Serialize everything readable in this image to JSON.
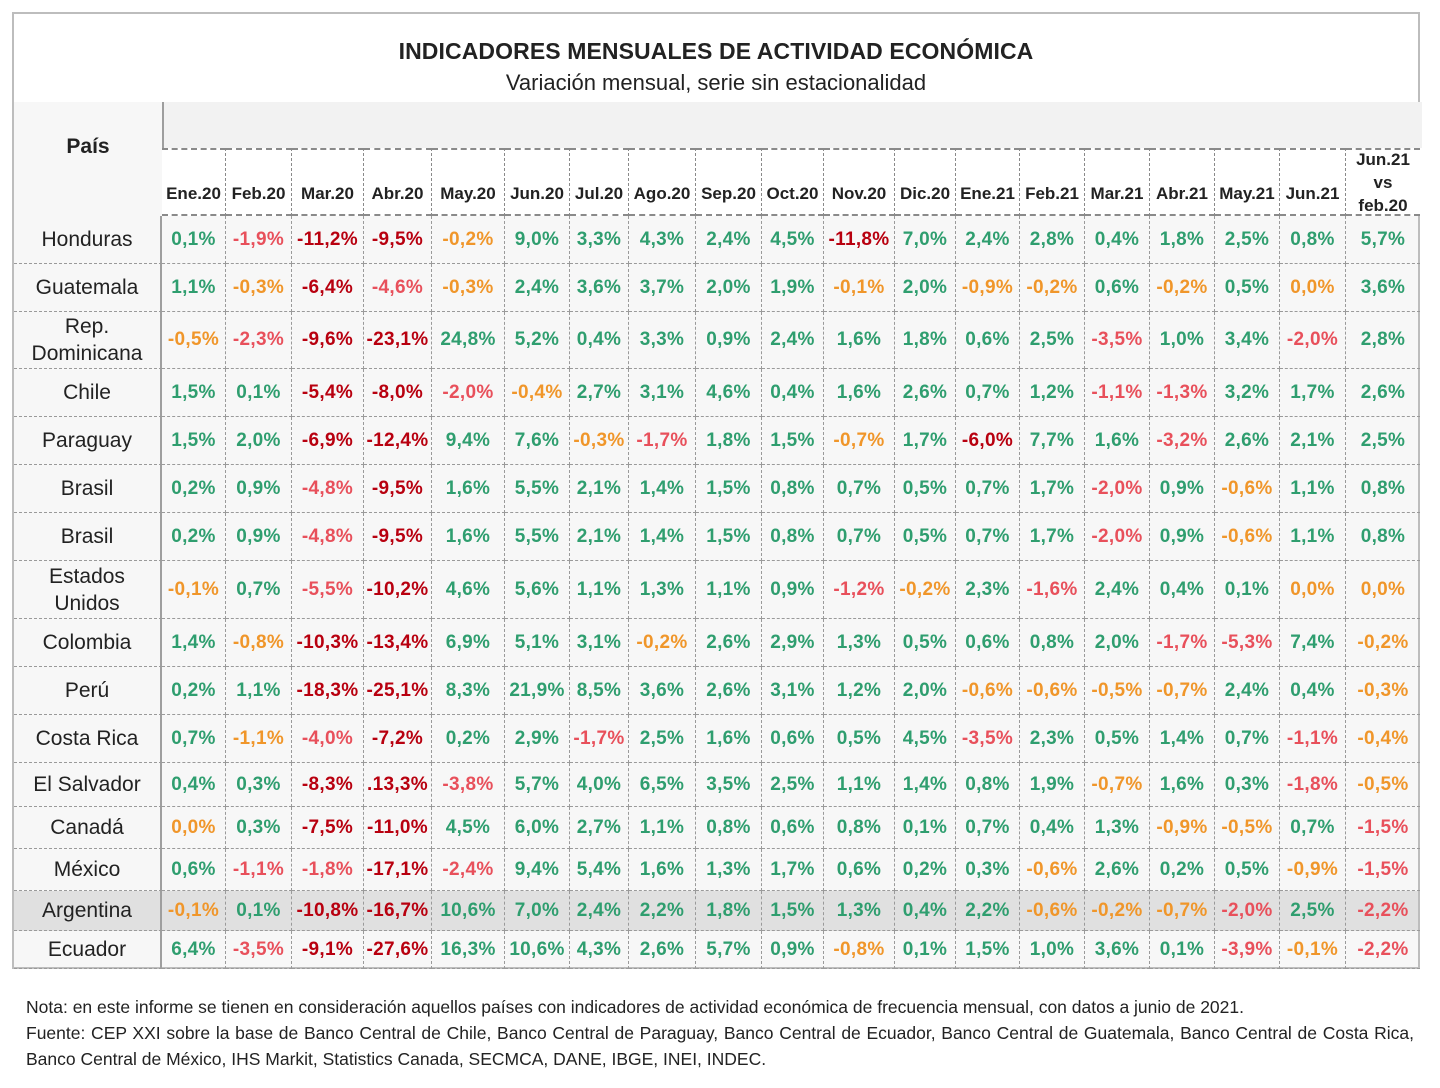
{
  "title": "INDICADORES MENSUALES DE ACTIVIDAD ECONÓMICA",
  "subtitle": "Variación mensual, serie sin estacionalidad",
  "country_header": "País",
  "columns": [
    "Ene.20",
    "Feb.20",
    "Mar.20",
    "Abr.20",
    "May.20",
    "Jun.20",
    "Jul.20",
    "Ago.20",
    "Sep.20",
    "Oct.20",
    "Nov.20",
    "Dic.20",
    "Ene.21",
    "Feb.21",
    "Mar.21",
    "Abr.21",
    "May.21",
    "Jun.21"
  ],
  "last_column": {
    "line1": "Jun.21",
    "line2": "vs",
    "line3": "feb.20"
  },
  "color_legend": {
    "g": "#2f9e6f",
    "o": "#f0962a",
    "r": "#e8505b",
    "d": "#b8000f"
  },
  "rows": [
    {
      "country": "Honduras",
      "values": [
        "0,1%",
        "-1,9%",
        "-11,2%",
        "-9,5%",
        "-0,2%",
        "9,0%",
        "3,3%",
        "4,3%",
        "2,4%",
        "4,5%",
        "-11,8%",
        "7,0%",
        "2,4%",
        "2,8%",
        "0,4%",
        "1,8%",
        "2,5%",
        "0,8%",
        "5,7%"
      ],
      "colors": [
        "g",
        "r",
        "d",
        "d",
        "o",
        "g",
        "g",
        "g",
        "g",
        "g",
        "d",
        "g",
        "g",
        "g",
        "g",
        "g",
        "g",
        "g",
        "g"
      ]
    },
    {
      "country": "Guatemala",
      "values": [
        "1,1%",
        "-0,3%",
        "-6,4%",
        "-4,6%",
        "-0,3%",
        "2,4%",
        "3,6%",
        "3,7%",
        "2,0%",
        "1,9%",
        "-0,1%",
        "2,0%",
        "-0,9%",
        "-0,2%",
        "0,6%",
        "-0,2%",
        "0,5%",
        "0,0%",
        "3,6%"
      ],
      "colors": [
        "g",
        "o",
        "d",
        "r",
        "o",
        "g",
        "g",
        "g",
        "g",
        "g",
        "o",
        "g",
        "o",
        "o",
        "g",
        "o",
        "g",
        "o",
        "g"
      ]
    },
    {
      "country": "Rep. Dominicana",
      "values": [
        "-0,5%",
        "-2,3%",
        "-9,6%",
        "-23,1%",
        "24,8%",
        "5,2%",
        "0,4%",
        "3,3%",
        "0,9%",
        "2,4%",
        "1,6%",
        "1,8%",
        "0,6%",
        "2,5%",
        "-3,5%",
        "1,0%",
        "3,4%",
        "-2,0%",
        "2,8%"
      ],
      "colors": [
        "o",
        "r",
        "d",
        "d",
        "g",
        "g",
        "g",
        "g",
        "g",
        "g",
        "g",
        "g",
        "g",
        "g",
        "r",
        "g",
        "g",
        "r",
        "g"
      ]
    },
    {
      "country": "Chile",
      "values": [
        "1,5%",
        "0,1%",
        "-5,4%",
        "-8,0%",
        "-2,0%",
        "-0,4%",
        "2,7%",
        "3,1%",
        "4,6%",
        "0,4%",
        "1,6%",
        "2,6%",
        "0,7%",
        "1,2%",
        "-1,1%",
        "-1,3%",
        "3,2%",
        "1,7%",
        "2,6%"
      ],
      "colors": [
        "g",
        "g",
        "d",
        "d",
        "r",
        "o",
        "g",
        "g",
        "g",
        "g",
        "g",
        "g",
        "g",
        "g",
        "r",
        "r",
        "g",
        "g",
        "g"
      ]
    },
    {
      "country": "Paraguay",
      "values": [
        "1,5%",
        "2,0%",
        "-6,9%",
        "-12,4%",
        "9,4%",
        "7,6%",
        "-0,3%",
        "-1,7%",
        "1,8%",
        "1,5%",
        "-0,7%",
        "1,7%",
        "-6,0%",
        "7,7%",
        "1,6%",
        "-3,2%",
        "2,6%",
        "2,1%",
        "2,5%"
      ],
      "colors": [
        "g",
        "g",
        "d",
        "d",
        "g",
        "g",
        "o",
        "r",
        "g",
        "g",
        "o",
        "g",
        "d",
        "g",
        "g",
        "r",
        "g",
        "g",
        "g"
      ]
    },
    {
      "country": "Brasil",
      "values": [
        "0,2%",
        "0,9%",
        "-4,8%",
        "-9,5%",
        "1,6%",
        "5,5%",
        "2,1%",
        "1,4%",
        "1,5%",
        "0,8%",
        "0,7%",
        "0,5%",
        "0,7%",
        "1,7%",
        "-2,0%",
        "0,9%",
        "-0,6%",
        "1,1%",
        "0,8%"
      ],
      "colors": [
        "g",
        "g",
        "r",
        "d",
        "g",
        "g",
        "g",
        "g",
        "g",
        "g",
        "g",
        "g",
        "g",
        "g",
        "r",
        "g",
        "o",
        "g",
        "g"
      ]
    },
    {
      "country": "Brasil",
      "values": [
        "0,2%",
        "0,9%",
        "-4,8%",
        "-9,5%",
        "1,6%",
        "5,5%",
        "2,1%",
        "1,4%",
        "1,5%",
        "0,8%",
        "0,7%",
        "0,5%",
        "0,7%",
        "1,7%",
        "-2,0%",
        "0,9%",
        "-0,6%",
        "1,1%",
        "0,8%"
      ],
      "colors": [
        "g",
        "g",
        "r",
        "d",
        "g",
        "g",
        "g",
        "g",
        "g",
        "g",
        "g",
        "g",
        "g",
        "g",
        "r",
        "g",
        "o",
        "g",
        "g"
      ]
    },
    {
      "country": "Estados Unidos",
      "values": [
        "-0,1%",
        "0,7%",
        "-5,5%",
        "-10,2%",
        "4,6%",
        "5,6%",
        "1,1%",
        "1,3%",
        "1,1%",
        "0,9%",
        "-1,2%",
        "-0,2%",
        "2,3%",
        "-1,6%",
        "2,4%",
        "0,4%",
        "0,1%",
        "0,0%",
        "0,0%"
      ],
      "colors": [
        "o",
        "g",
        "r",
        "d",
        "g",
        "g",
        "g",
        "g",
        "g",
        "g",
        "r",
        "o",
        "g",
        "r",
        "g",
        "g",
        "g",
        "o",
        "o"
      ]
    },
    {
      "country": "Colombia",
      "values": [
        "1,4%",
        "-0,8%",
        "-10,3%",
        "-13,4%",
        "6,9%",
        "5,1%",
        "3,1%",
        "-0,2%",
        "2,6%",
        "2,9%",
        "1,3%",
        "0,5%",
        "0,6%",
        "0,8%",
        "2,0%",
        "-1,7%",
        "-5,3%",
        "7,4%",
        "-0,2%"
      ],
      "colors": [
        "g",
        "o",
        "d",
        "d",
        "g",
        "g",
        "g",
        "o",
        "g",
        "g",
        "g",
        "g",
        "g",
        "g",
        "g",
        "r",
        "r",
        "g",
        "o"
      ]
    },
    {
      "country": "Perú",
      "values": [
        "0,2%",
        "1,1%",
        "-18,3%",
        "-25,1%",
        "8,3%",
        "21,9%",
        "8,5%",
        "3,6%",
        "2,6%",
        "3,1%",
        "1,2%",
        "2,0%",
        "-0,6%",
        "-0,6%",
        "-0,5%",
        "-0,7%",
        "2,4%",
        "0,4%",
        "-0,3%"
      ],
      "colors": [
        "g",
        "g",
        "d",
        "d",
        "g",
        "g",
        "g",
        "g",
        "g",
        "g",
        "g",
        "g",
        "o",
        "o",
        "o",
        "o",
        "g",
        "g",
        "o"
      ]
    },
    {
      "country": "Costa Rica",
      "values": [
        "0,7%",
        "-1,1%",
        "-4,0%",
        "-7,2%",
        "0,2%",
        "2,9%",
        "-1,7%",
        "2,5%",
        "1,6%",
        "0,6%",
        "0,5%",
        "4,5%",
        "-3,5%",
        "2,3%",
        "0,5%",
        "1,4%",
        "0,7%",
        "-1,1%",
        "-0,4%"
      ],
      "colors": [
        "g",
        "o",
        "r",
        "d",
        "g",
        "g",
        "r",
        "g",
        "g",
        "g",
        "g",
        "g",
        "r",
        "g",
        "g",
        "g",
        "g",
        "r",
        "o"
      ]
    },
    {
      "country": "El Salvador",
      "values": [
        "0,4%",
        "0,3%",
        "-8,3%",
        ".13,3%",
        "-3,8%",
        "5,7%",
        "4,0%",
        "6,5%",
        "3,5%",
        "2,5%",
        "1,1%",
        "1,4%",
        "0,8%",
        "1,9%",
        "-0,7%",
        "1,6%",
        "0,3%",
        "-1,8%",
        "-0,5%"
      ],
      "colors": [
        "g",
        "g",
        "d",
        "d",
        "r",
        "g",
        "g",
        "g",
        "g",
        "g",
        "g",
        "g",
        "g",
        "g",
        "o",
        "g",
        "g",
        "r",
        "o"
      ]
    },
    {
      "country": "Canadá",
      "values": [
        "0,0%",
        "0,3%",
        "-7,5%",
        "-11,0%",
        "4,5%",
        "6,0%",
        "2,7%",
        "1,1%",
        "0,8%",
        "0,6%",
        "0,8%",
        "0,1%",
        "0,7%",
        "0,4%",
        "1,3%",
        "-0,9%",
        "-0,5%",
        "0,7%",
        "-1,5%"
      ],
      "colors": [
        "o",
        "g",
        "d",
        "d",
        "g",
        "g",
        "g",
        "g",
        "g",
        "g",
        "g",
        "g",
        "g",
        "g",
        "g",
        "o",
        "o",
        "g",
        "r"
      ]
    },
    {
      "country": "México",
      "values": [
        "0,6%",
        "-1,1%",
        "-1,8%",
        "-17,1%",
        "-2,4%",
        "9,4%",
        "5,4%",
        "1,6%",
        "1,3%",
        "1,7%",
        "0,6%",
        "0,2%",
        "0,3%",
        "-0,6%",
        "2,6%",
        "0,2%",
        "0,5%",
        "-0,9%",
        "-1,5%"
      ],
      "colors": [
        "g",
        "r",
        "r",
        "d",
        "r",
        "g",
        "g",
        "g",
        "g",
        "g",
        "g",
        "g",
        "g",
        "o",
        "g",
        "g",
        "g",
        "o",
        "r"
      ]
    },
    {
      "country": "Argentina",
      "highlight": true,
      "values": [
        "-0,1%",
        "0,1%",
        "-10,8%",
        "-16,7%",
        "10,6%",
        "7,0%",
        "2,4%",
        "2,2%",
        "1,8%",
        "1,5%",
        "1,3%",
        "0,4%",
        "2,2%",
        "-0,6%",
        "-0,2%",
        "-0,7%",
        "-2,0%",
        "2,5%",
        "-2,2%"
      ],
      "colors": [
        "o",
        "g",
        "d",
        "d",
        "g",
        "g",
        "g",
        "g",
        "g",
        "g",
        "g",
        "g",
        "g",
        "o",
        "o",
        "o",
        "r",
        "g",
        "r"
      ]
    },
    {
      "country": "Ecuador",
      "values": [
        "6,4%",
        "-3,5%",
        "-9,1%",
        "-27,6%",
        "16,3%",
        "10,6%",
        "4,3%",
        "2,6%",
        "5,7%",
        "0,9%",
        "-0,8%",
        "0,1%",
        "1,5%",
        "1,0%",
        "3,6%",
        "0,1%",
        "-3,9%",
        "-0,1%",
        "-2,2%"
      ],
      "colors": [
        "g",
        "r",
        "d",
        "d",
        "g",
        "g",
        "g",
        "g",
        "g",
        "g",
        "o",
        "g",
        "g",
        "g",
        "g",
        "g",
        "r",
        "o",
        "r"
      ]
    }
  ],
  "notes": {
    "note": "Nota: en este informe se tienen en consideración aquellos países con indicadores de actividad económica de frecuencia mensual, con datos a junio de 2021.",
    "source": "Fuente: CEP XXI sobre la base de Banco Central de Chile, Banco Central de Paraguay, Banco Central de Ecuador, Banco Central de Guatemala, Banco Central de Costa Rica, Banco Central de México, IHS Markit, Statistics Canada, SECMCA, DANE, IBGE, INEI, INDEC."
  }
}
